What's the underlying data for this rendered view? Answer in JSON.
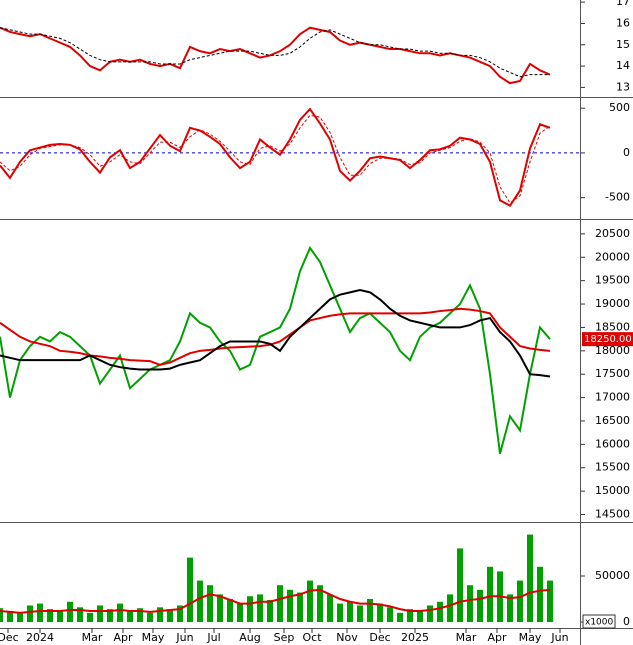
{
  "chart_data": [
    {
      "type": "line",
      "xlim": [
        0,
        58
      ],
      "ylim": [
        12.55,
        17.1
      ],
      "yticks": [
        13,
        14,
        15,
        16,
        17
      ],
      "series": [
        {
          "color": "#e00000",
          "style": "solid",
          "values": [
            15.8,
            15.6,
            15.5,
            15.4,
            15.5,
            15.3,
            15.1,
            14.9,
            14.5,
            14.0,
            13.8,
            14.2,
            14.3,
            14.2,
            14.3,
            14.1,
            14.0,
            14.1,
            13.9,
            14.9,
            14.7,
            14.6,
            14.8,
            14.7,
            14.8,
            14.6,
            14.4,
            14.5,
            14.7,
            15.0,
            15.5,
            15.8,
            15.7,
            15.6,
            15.2,
            15.0,
            15.1,
            15.0,
            14.9,
            14.8,
            14.8,
            14.7,
            14.6,
            14.6,
            14.5,
            14.6,
            14.5,
            14.4,
            14.2,
            14.0,
            13.5,
            13.2,
            13.3,
            14.1,
            13.8,
            13.6
          ]
        },
        {
          "color": "#000000",
          "style": "dashed",
          "values": [
            15.8,
            15.7,
            15.6,
            15.5,
            15.5,
            15.4,
            15.3,
            15.1,
            14.8,
            14.5,
            14.3,
            14.2,
            14.2,
            14.2,
            14.2,
            14.2,
            14.1,
            14.1,
            14.1,
            14.3,
            14.4,
            14.5,
            14.6,
            14.7,
            14.7,
            14.7,
            14.6,
            14.5,
            14.5,
            14.6,
            14.9,
            15.3,
            15.6,
            15.7,
            15.5,
            15.3,
            15.1,
            15.0,
            15.0,
            14.9,
            14.8,
            14.8,
            14.7,
            14.7,
            14.6,
            14.6,
            14.5,
            14.5,
            14.4,
            14.2,
            13.9,
            13.7,
            13.5,
            13.6,
            13.6,
            13.6
          ]
        }
      ]
    },
    {
      "type": "line",
      "xlim": [
        0,
        58
      ],
      "ylim": [
        -739,
        614
      ],
      "yticks": [
        -500,
        0,
        500
      ],
      "zero_line": {
        "value": 0,
        "color": "#0000cc"
      },
      "series": [
        {
          "color": "#e00000",
          "style": "solid",
          "values": [
            -140,
            -280,
            -100,
            30,
            60,
            90,
            100,
            90,
            40,
            -100,
            -220,
            -50,
            30,
            -170,
            -100,
            50,
            200,
            80,
            20,
            280,
            250,
            180,
            100,
            -50,
            -170,
            -100,
            150,
            60,
            -20,
            150,
            370,
            490,
            330,
            150,
            -200,
            -310,
            -200,
            -60,
            -40,
            -60,
            -80,
            -170,
            -80,
            30,
            40,
            80,
            170,
            150,
            100,
            -100,
            -530,
            -590,
            -420,
            50,
            320,
            280
          ]
        },
        {
          "color": "#e00000",
          "style": "dashed",
          "values": [
            -100,
            -200,
            -150,
            -20,
            50,
            70,
            90,
            90,
            60,
            -20,
            -150,
            -100,
            -20,
            -100,
            -120,
            0,
            120,
            120,
            60,
            180,
            260,
            210,
            130,
            20,
            -100,
            -130,
            50,
            80,
            20,
            100,
            280,
            420,
            400,
            230,
            -50,
            -250,
            -250,
            -120,
            -60,
            -60,
            -70,
            -130,
            -110,
            0,
            30,
            60,
            130,
            160,
            120,
            0,
            -380,
            -560,
            -480,
            -100,
            220,
            300
          ]
        }
      ]
    },
    {
      "type": "line",
      "xlim": [
        0,
        58
      ],
      "ylim": [
        14340,
        20797
      ],
      "yticks": [
        14500,
        15000,
        15500,
        16000,
        16500,
        17000,
        17500,
        18000,
        18500,
        19000,
        19500,
        20000,
        20500
      ],
      "last_label": {
        "value": 18250,
        "label": "18250.00"
      },
      "series": [
        {
          "color": "#00a000",
          "style": "solid",
          "values": [
            18300,
            17000,
            17800,
            18100,
            18300,
            18200,
            18400,
            18300,
            18100,
            17900,
            17300,
            17600,
            17900,
            17200,
            17400,
            17600,
            17700,
            17800,
            18200,
            18800,
            18600,
            18500,
            18200,
            18000,
            17600,
            17700,
            18300,
            18400,
            18500,
            18900,
            19700,
            20200,
            19900,
            19400,
            18900,
            18400,
            18700,
            18800,
            18600,
            18400,
            18000,
            17800,
            18300,
            18500,
            18600,
            18800,
            19000,
            19400,
            18900,
            17500,
            15800,
            16600,
            16300,
            17500,
            18500,
            18250
          ]
        },
        {
          "color": "#e00000",
          "style": "solid",
          "values": [
            18600,
            18450,
            18300,
            18200,
            18150,
            18100,
            18000,
            17980,
            17950,
            17900,
            17880,
            17850,
            17830,
            17800,
            17790,
            17780,
            17700,
            17750,
            17850,
            17950,
            18000,
            18020,
            18050,
            18070,
            18080,
            18090,
            18100,
            18130,
            18200,
            18350,
            18500,
            18650,
            18700,
            18750,
            18780,
            18800,
            18800,
            18800,
            18800,
            18800,
            18800,
            18800,
            18800,
            18820,
            18850,
            18870,
            18900,
            18880,
            18850,
            18800,
            18500,
            18300,
            18100,
            18050,
            18020,
            18000
          ]
        },
        {
          "color": "#000000",
          "style": "solid",
          "values": [
            17900,
            17850,
            17800,
            17800,
            17800,
            17800,
            17800,
            17800,
            17800,
            17900,
            17800,
            17700,
            17650,
            17620,
            17600,
            17600,
            17600,
            17620,
            17700,
            17750,
            17800,
            17950,
            18100,
            18200,
            18200,
            18200,
            18200,
            18150,
            18000,
            18300,
            18500,
            18700,
            18900,
            19100,
            19200,
            19250,
            19300,
            19250,
            19100,
            18900,
            18750,
            18650,
            18600,
            18550,
            18500,
            18500,
            18500,
            18550,
            18650,
            18700,
            18400,
            18200,
            17900,
            17500,
            17480,
            17450
          ]
        }
      ]
    },
    {
      "type": "bar",
      "xlim": [
        0,
        58
      ],
      "ylim": [
        -6500,
        107600
      ],
      "yticks": [
        0,
        50000
      ],
      "unit_label": "x1000",
      "color": "#00a000",
      "values": [
        15000,
        12000,
        10000,
        18000,
        20000,
        14000,
        12000,
        22000,
        16000,
        10000,
        18000,
        14000,
        20000,
        12000,
        15000,
        10000,
        16000,
        14000,
        18000,
        70000,
        45000,
        40000,
        30000,
        25000,
        20000,
        28000,
        30000,
        24000,
        40000,
        35000,
        32000,
        45000,
        40000,
        30000,
        20000,
        22000,
        18000,
        25000,
        20000,
        16000,
        10000,
        14000,
        12000,
        18000,
        22000,
        30000,
        80000,
        40000,
        35000,
        60000,
        55000,
        30000,
        45000,
        95000,
        60000,
        45000
      ],
      "series": [
        {
          "color": "#e00000",
          "style": "solid",
          "values": [
            12000,
            11000,
            10000,
            11000,
            12000,
            12000,
            12000,
            13000,
            13000,
            12000,
            12000,
            12000,
            13000,
            12000,
            12000,
            11000,
            12000,
            13000,
            14000,
            20000,
            26000,
            30000,
            28000,
            24000,
            20000,
            20000,
            22000,
            22000,
            25000,
            28000,
            30000,
            34000,
            35000,
            30000,
            25000,
            22000,
            20000,
            20000,
            19000,
            17000,
            14000,
            12000,
            12000,
            13000,
            15000,
            18000,
            22000,
            24000,
            25000,
            28000,
            28000,
            26000,
            27000,
            32000,
            34000,
            35000
          ]
        }
      ],
      "xticks": [
        {
          "value": 0.8,
          "label": "Dec"
        },
        {
          "value": 4.0,
          "label": "2024"
        },
        {
          "value": 9.2,
          "label": "Mar"
        },
        {
          "value": 12.3,
          "label": "Apr"
        },
        {
          "value": 15.3,
          "label": "May"
        },
        {
          "value": 18.5,
          "label": "Jun"
        },
        {
          "value": 21.4,
          "label": "Jul"
        },
        {
          "value": 25.0,
          "label": "Aug"
        },
        {
          "value": 28.4,
          "label": "Sep"
        },
        {
          "value": 31.2,
          "label": "Oct"
        },
        {
          "value": 34.7,
          "label": "Nov"
        },
        {
          "value": 38.0,
          "label": "Dec"
        },
        {
          "value": 41.5,
          "label": "2025"
        },
        {
          "value": 46.6,
          "label": "Mar"
        },
        {
          "value": 49.7,
          "label": "Apr"
        },
        {
          "value": 53.0,
          "label": "May"
        },
        {
          "value": 56.0,
          "label": "Jun"
        }
      ]
    }
  ]
}
